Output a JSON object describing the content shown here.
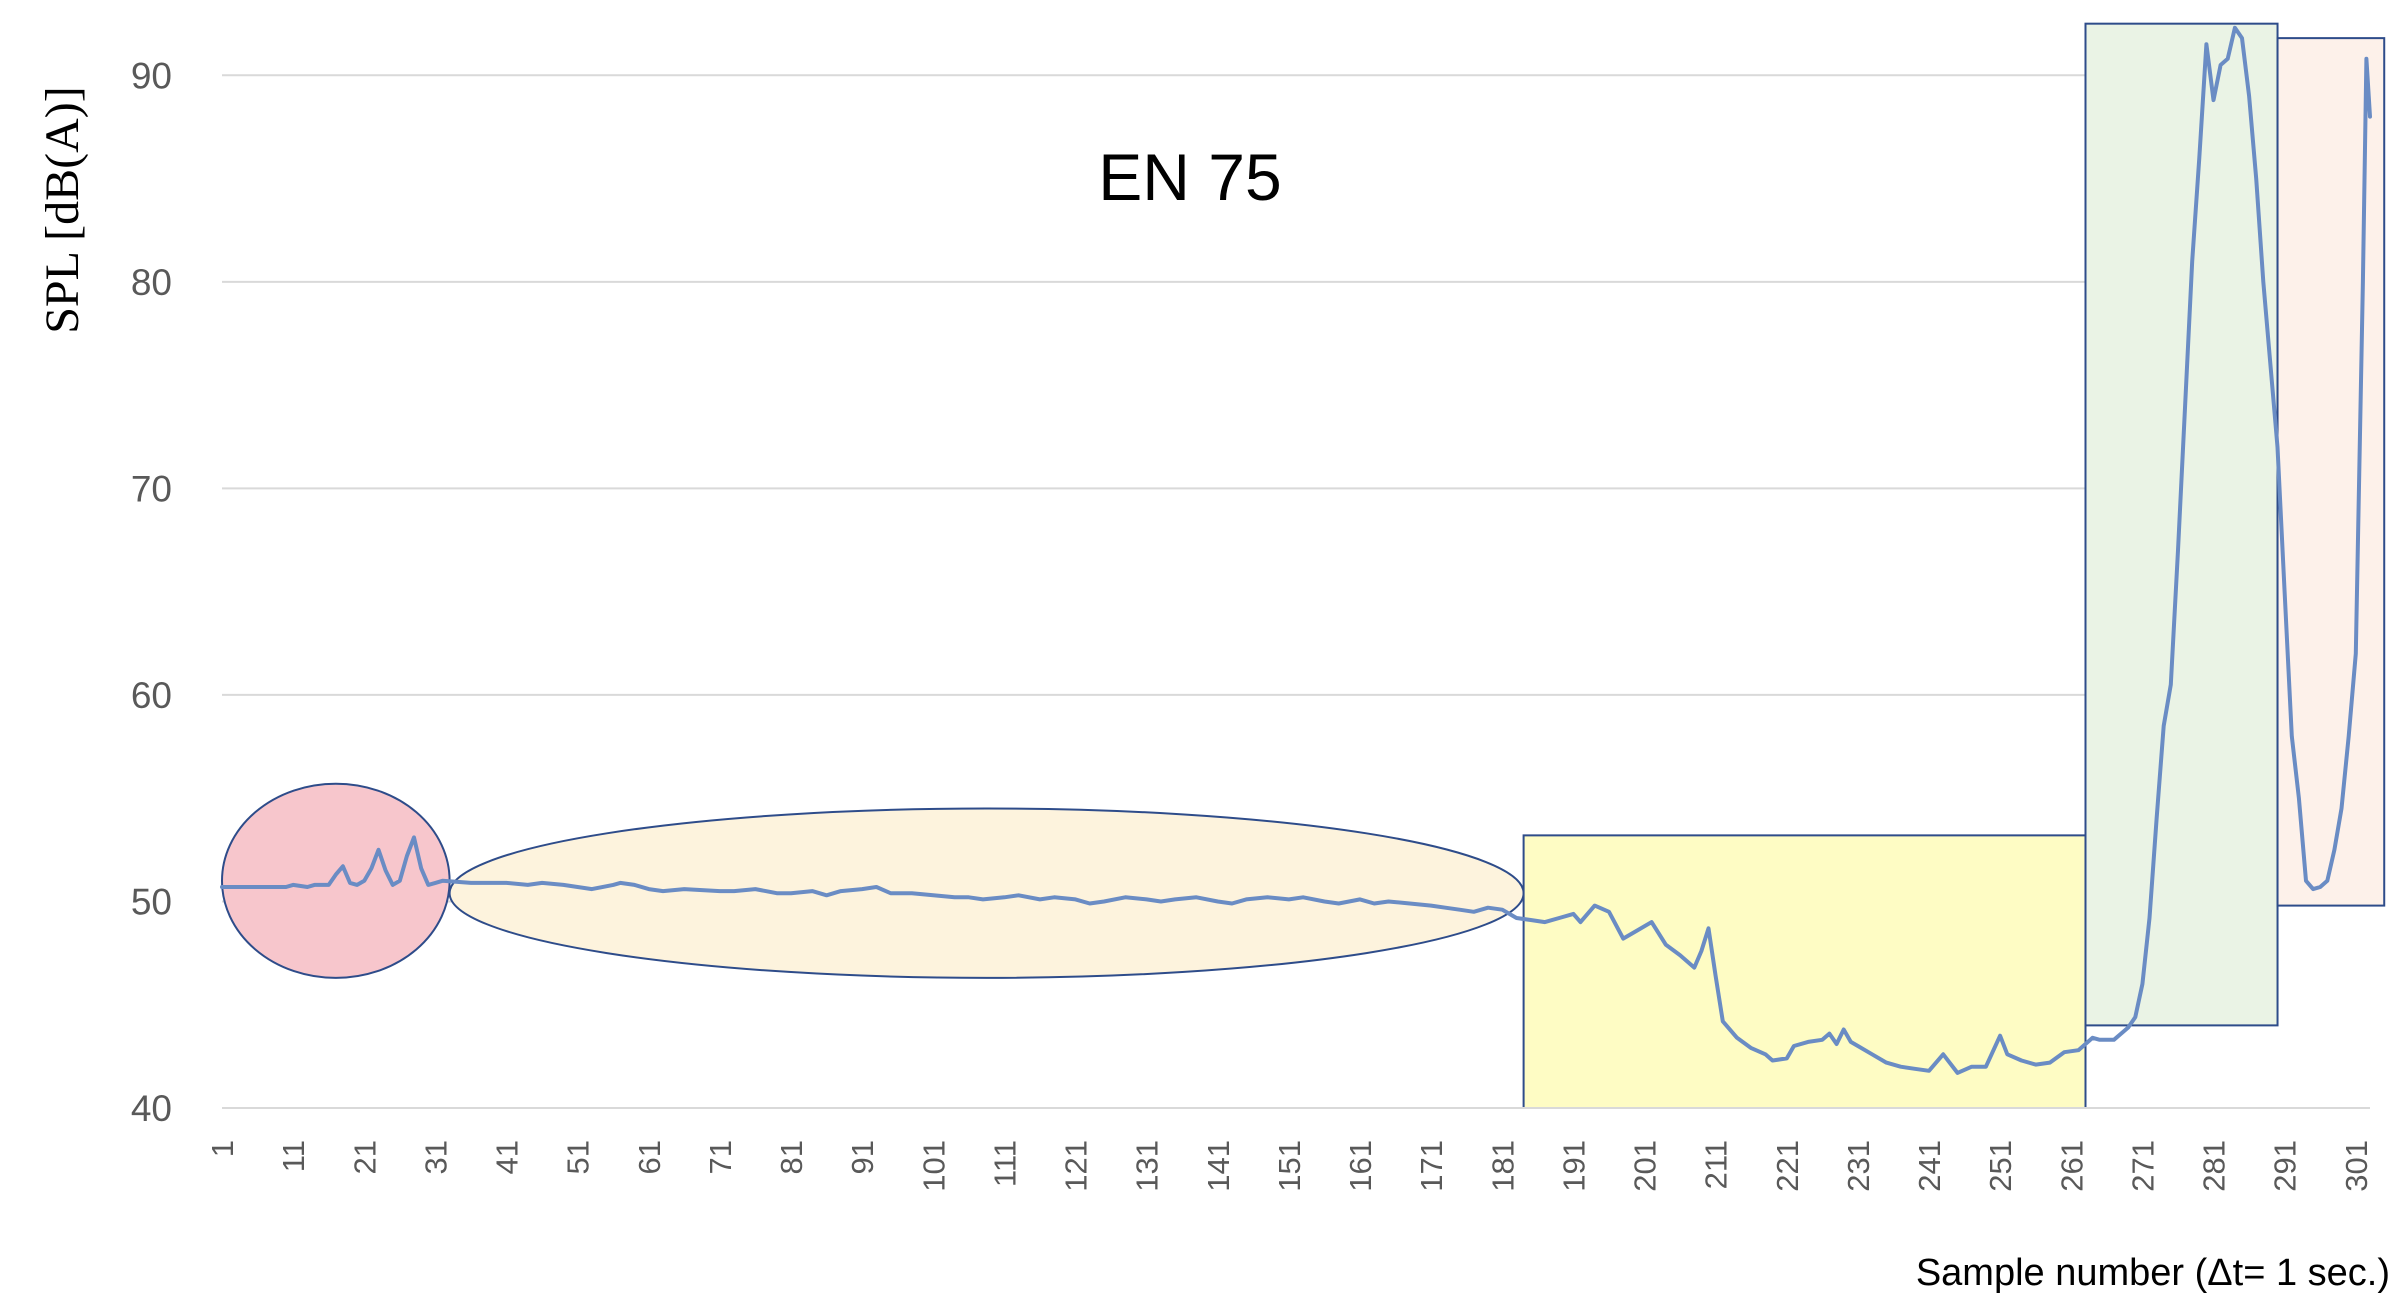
{
  "chart_data": {
    "type": "line",
    "title": "EN 75",
    "xlabel": "Sample number (Δt= 1 sec.)",
    "ylabel": "SPL [dB(A)]",
    "ylim": [
      40,
      92
    ],
    "xlim": [
      1,
      303
    ],
    "yticks": [
      40,
      50,
      60,
      70,
      80,
      90
    ],
    "xticks": [
      1,
      11,
      21,
      31,
      41,
      51,
      61,
      71,
      81,
      91,
      101,
      111,
      121,
      131,
      141,
      151,
      161,
      171,
      181,
      191,
      201,
      211,
      221,
      231,
      241,
      251,
      261,
      271,
      281,
      291,
      301
    ],
    "grid": "horizontal",
    "line_color": "#6a8cc4",
    "series": [
      {
        "points": [
          [
            1,
            50.7
          ],
          [
            6,
            50.7
          ],
          [
            10,
            50.7
          ],
          [
            11,
            50.8
          ],
          [
            13,
            50.7
          ],
          [
            14,
            50.8
          ],
          [
            16,
            50.8
          ],
          [
            17,
            51.3
          ],
          [
            18,
            51.7
          ],
          [
            19,
            50.9
          ],
          [
            20,
            50.8
          ],
          [
            21,
            51.0
          ],
          [
            22,
            51.6
          ],
          [
            23,
            52.5
          ],
          [
            24,
            51.5
          ],
          [
            25,
            50.8
          ],
          [
            26,
            51.0
          ],
          [
            27,
            52.2
          ],
          [
            28,
            53.1
          ],
          [
            29,
            51.6
          ],
          [
            30,
            50.8
          ],
          [
            31,
            50.9
          ],
          [
            32,
            51.0
          ],
          [
            36,
            50.9
          ],
          [
            41,
            50.9
          ],
          [
            44,
            50.8
          ],
          [
            46,
            50.9
          ],
          [
            49,
            50.8
          ],
          [
            51,
            50.7
          ],
          [
            53,
            50.6
          ],
          [
            56,
            50.8
          ],
          [
            57,
            50.9
          ],
          [
            59,
            50.8
          ],
          [
            61,
            50.6
          ],
          [
            63,
            50.5
          ],
          [
            66,
            50.6
          ],
          [
            71,
            50.5
          ],
          [
            73,
            50.5
          ],
          [
            76,
            50.6
          ],
          [
            79,
            50.4
          ],
          [
            81,
            50.4
          ],
          [
            84,
            50.5
          ],
          [
            86,
            50.3
          ],
          [
            88,
            50.5
          ],
          [
            91,
            50.6
          ],
          [
            93,
            50.7
          ],
          [
            95,
            50.4
          ],
          [
            98,
            50.4
          ],
          [
            101,
            50.3
          ],
          [
            104,
            50.2
          ],
          [
            106,
            50.2
          ],
          [
            108,
            50.1
          ],
          [
            111,
            50.2
          ],
          [
            113,
            50.3
          ],
          [
            116,
            50.1
          ],
          [
            118,
            50.2
          ],
          [
            121,
            50.1
          ],
          [
            123,
            49.9
          ],
          [
            125,
            50.0
          ],
          [
            128,
            50.2
          ],
          [
            131,
            50.1
          ],
          [
            133,
            50.0
          ],
          [
            135,
            50.1
          ],
          [
            138,
            50.2
          ],
          [
            141,
            50.0
          ],
          [
            143,
            49.9
          ],
          [
            145,
            50.1
          ],
          [
            148,
            50.2
          ],
          [
            151,
            50.1
          ],
          [
            153,
            50.2
          ],
          [
            156,
            50.0
          ],
          [
            158,
            49.9
          ],
          [
            161,
            50.1
          ],
          [
            163,
            49.9
          ],
          [
            165,
            50.0
          ],
          [
            168,
            49.9
          ],
          [
            171,
            49.8
          ],
          [
            173,
            49.7
          ],
          [
            175,
            49.6
          ],
          [
            177,
            49.5
          ],
          [
            179,
            49.7
          ],
          [
            181,
            49.6
          ],
          [
            183,
            49.2
          ],
          [
            185,
            49.1
          ],
          [
            187,
            49.0
          ],
          [
            189,
            49.2
          ],
          [
            191,
            49.4
          ],
          [
            192,
            49.0
          ],
          [
            194,
            49.8
          ],
          [
            196,
            49.5
          ],
          [
            198,
            48.2
          ],
          [
            200,
            48.6
          ],
          [
            202,
            49.0
          ],
          [
            204,
            47.9
          ],
          [
            206,
            47.4
          ],
          [
            208,
            46.8
          ],
          [
            209,
            47.6
          ],
          [
            210,
            48.7
          ],
          [
            211,
            46.4
          ],
          [
            212,
            44.2
          ],
          [
            214,
            43.4
          ],
          [
            216,
            42.9
          ],
          [
            218,
            42.6
          ],
          [
            219,
            42.3
          ],
          [
            221,
            42.4
          ],
          [
            222,
            43.0
          ],
          [
            224,
            43.2
          ],
          [
            226,
            43.3
          ],
          [
            227,
            43.6
          ],
          [
            228,
            43.1
          ],
          [
            229,
            43.8
          ],
          [
            230,
            43.2
          ],
          [
            231,
            43.0
          ],
          [
            233,
            42.6
          ],
          [
            235,
            42.2
          ],
          [
            237,
            42.0
          ],
          [
            239,
            41.9
          ],
          [
            241,
            41.8
          ],
          [
            243,
            42.6
          ],
          [
            245,
            41.7
          ],
          [
            247,
            42.0
          ],
          [
            249,
            42.0
          ],
          [
            251,
            43.5
          ],
          [
            252,
            42.6
          ],
          [
            254,
            42.3
          ],
          [
            256,
            42.1
          ],
          [
            258,
            42.2
          ],
          [
            260,
            42.7
          ],
          [
            262,
            42.8
          ],
          [
            264,
            43.4
          ],
          [
            265,
            43.3
          ],
          [
            267,
            43.3
          ],
          [
            268,
            43.6
          ],
          [
            269,
            43.9
          ],
          [
            270,
            44.4
          ],
          [
            271,
            46.0
          ],
          [
            272,
            49.2
          ],
          [
            273,
            54.0
          ],
          [
            274,
            58.5
          ],
          [
            275,
            60.5
          ],
          [
            276,
            67.0
          ],
          [
            277,
            74.0
          ],
          [
            278,
            81.0
          ],
          [
            279,
            86.0
          ],
          [
            280,
            91.5
          ],
          [
            281,
            88.8
          ],
          [
            282,
            90.5
          ],
          [
            283,
            90.8
          ],
          [
            284,
            92.3
          ],
          [
            285,
            91.8
          ],
          [
            286,
            89.0
          ],
          [
            287,
            85.0
          ],
          [
            288,
            80.0
          ],
          [
            289,
            76.0
          ],
          [
            290,
            72.0
          ],
          [
            291,
            65.0
          ],
          [
            292,
            58.0
          ],
          [
            293,
            55.0
          ],
          [
            294,
            51.0
          ],
          [
            295,
            50.6
          ],
          [
            296,
            50.7
          ],
          [
            297,
            51.0
          ],
          [
            298,
            52.5
          ],
          [
            299,
            54.5
          ],
          [
            300,
            58.0
          ],
          [
            301,
            62.0
          ],
          [
            302,
            80.0
          ],
          [
            302.5,
            90.8
          ],
          [
            303,
            88.0
          ]
        ]
      }
    ],
    "annotations": [
      {
        "shape": "ellipse",
        "x": [
          1,
          33
        ],
        "y": [
          46.3,
          55.7
        ],
        "fill": "#f7c6cc",
        "stroke": "#2e4c8a"
      },
      {
        "shape": "ellipse",
        "x": [
          33,
          184
        ],
        "y": [
          46.3,
          54.5
        ],
        "fill": "#fdf3dd",
        "stroke": "#2e4c8a"
      },
      {
        "shape": "rect",
        "x": [
          184,
          263
        ],
        "y": [
          40.0,
          53.2
        ],
        "fill": "#fefcc4",
        "stroke": "#2e4c8a"
      },
      {
        "shape": "rect",
        "x": [
          263,
          290
        ],
        "y": [
          44.0,
          92.5
        ],
        "fill": "#eaf3e5",
        "stroke": "#2e4c8a"
      },
      {
        "shape": "rect",
        "x": [
          290,
          305
        ],
        "y": [
          49.8,
          91.8
        ],
        "fill": "#fdf1ea",
        "stroke": "#2e4c8a"
      }
    ]
  }
}
